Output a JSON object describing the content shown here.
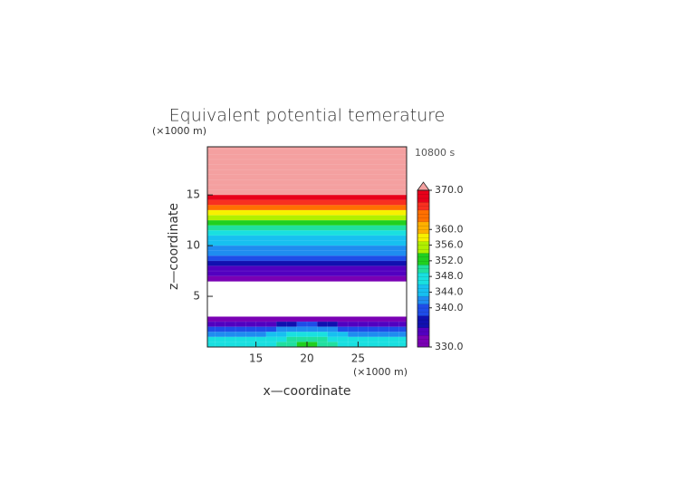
{
  "chart_data": {
    "type": "contour",
    "title": "Equivalent potential temerature",
    "y_unit": "(×1000 m)",
    "x_unit": "(×1000 m)",
    "time_label": "10800 s",
    "xlabel": "x—coordinate",
    "ylabel": "z—coordinate",
    "xlim": [
      10.25,
      29.75
    ],
    "ylim": [
      0,
      19.75
    ],
    "xticks": [
      15,
      20,
      25
    ],
    "yticks": [
      5,
      10,
      15
    ],
    "x": [
      10.5,
      11.5,
      12.5,
      13.5,
      14.5,
      15.5,
      16.5,
      17.5,
      18.5,
      19.5,
      20.5,
      21.5,
      22.5,
      23.5,
      24.5,
      25.5,
      26.5,
      27.5,
      28.5,
      29.5
    ],
    "z": [
      19.75,
      19.25,
      18.75,
      18.25,
      17.75,
      17.25,
      16.75,
      16.25,
      15.75,
      15.25,
      14.75,
      14.25,
      13.75,
      13.25,
      12.75,
      12.25,
      11.75,
      11.25,
      10.75,
      10.25,
      9.75,
      9.25,
      8.75,
      8.25,
      7.75,
      7.25,
      6.75,
      6.25,
      5.75,
      5.25,
      4.75,
      4.25,
      3.75,
      3.25,
      2.75,
      2.25,
      1.75,
      1.25,
      0.75,
      0.25
    ],
    "values": [
      372,
      372,
      372,
      372,
      372,
      372,
      372,
      372,
      372,
      371,
      369,
      367,
      363,
      359,
      355,
      352,
      349,
      347,
      345,
      344,
      343,
      341,
      339,
      337,
      335,
      333,
      331,
      null,
      null,
      null,
      null,
      null,
      null,
      null,
      331,
      [
        335,
        335,
        335,
        335,
        335,
        335,
        335,
        336,
        337,
        338,
        338,
        337,
        336,
        335,
        335,
        335,
        335,
        335,
        335,
        335
      ],
      [
        339,
        339,
        339,
        339,
        339,
        339,
        340,
        341,
        342,
        343,
        343,
        342,
        341,
        340,
        339,
        339,
        339,
        339,
        339,
        339
      ],
      [
        343,
        343,
        343,
        343,
        343,
        343,
        344,
        345,
        346,
        347,
        347,
        346,
        345,
        344,
        343,
        343,
        343,
        343,
        343,
        343
      ],
      [
        347,
        347,
        347,
        347,
        347,
        347,
        347,
        348,
        349,
        350,
        350,
        349,
        348,
        347,
        347,
        347,
        347,
        347,
        347,
        347
      ],
      [
        348,
        348,
        348,
        348,
        348,
        348,
        348,
        349,
        350,
        352,
        352,
        350,
        349,
        348,
        348,
        348,
        348,
        348,
        348,
        348
      ]
    ],
    "clim": [
      330,
      370
    ],
    "contour_interval": 1,
    "colors": [
      "#7a00b4",
      "#5200c0",
      "#1010b0",
      "#1f4ce8",
      "#1f8cf0",
      "#17c0f0",
      "#19e0e0",
      "#20e0a0",
      "#20d020",
      "#b0f000",
      "#f8f000",
      "#ffb000",
      "#ff7000",
      "#f83020",
      "#e8001a"
    ],
    "over_color": "#f4a0a0",
    "cbar_ticks": [
      {
        "value": 330,
        "label": "330.0"
      },
      {
        "value": 340,
        "label": "340.0"
      },
      {
        "value": 344,
        "label": "344.0"
      },
      {
        "value": 348,
        "label": "348.0"
      },
      {
        "value": 352,
        "label": "352.0"
      },
      {
        "value": 356,
        "label": "356.0"
      },
      {
        "value": 360,
        "label": "360.0"
      },
      {
        "value": 370,
        "label": "370.0"
      }
    ]
  }
}
